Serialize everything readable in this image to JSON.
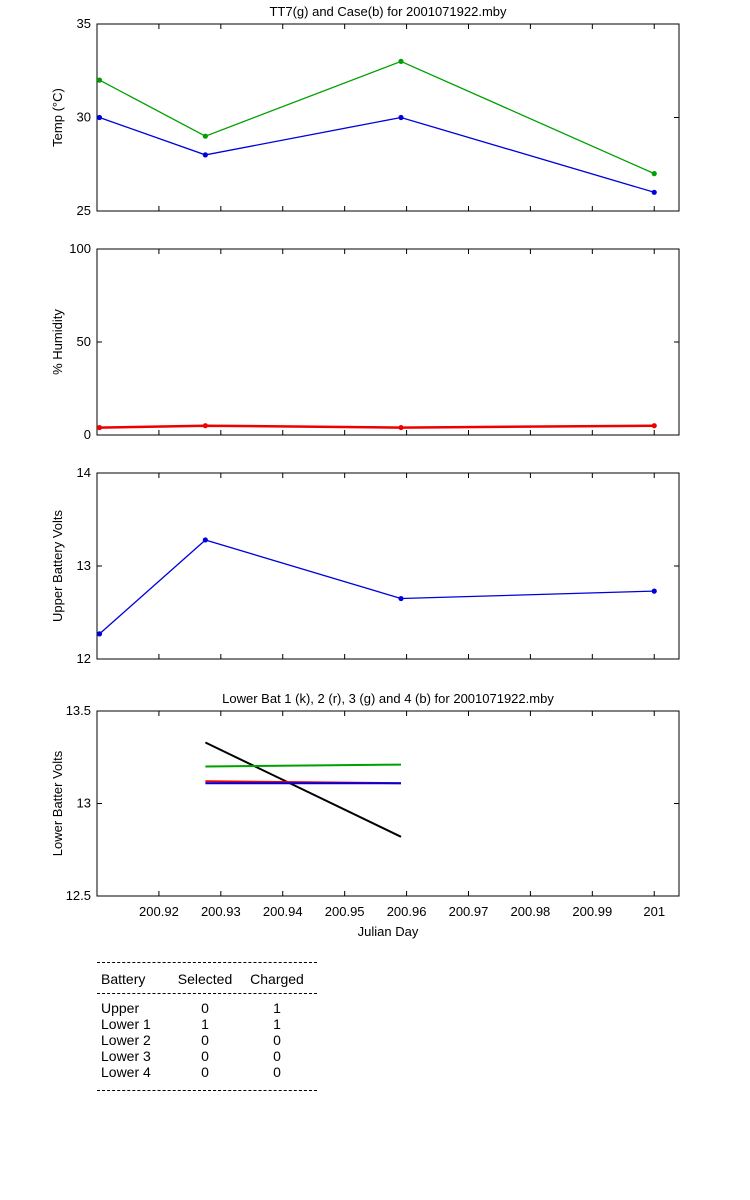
{
  "chart_data": [
    {
      "type": "line",
      "title": "TT7(g) and Case(b) for 2001071922.mby",
      "ylabel": "Temp  (°C)",
      "xlabel": "",
      "xlim": [
        200.91,
        201.004
      ],
      "ylim": [
        25,
        35
      ],
      "yticks": [
        25,
        30,
        35
      ],
      "xticks": [
        200.92,
        200.93,
        200.94,
        200.95,
        200.96,
        200.97,
        200.98,
        200.99,
        201
      ],
      "show_xtick_labels": false,
      "series": [
        {
          "color": "#00a000",
          "x": [
            200.9104,
            200.9275,
            200.9591,
            201.0
          ],
          "y": [
            32,
            29,
            33,
            27
          ]
        },
        {
          "color": "#0000dd",
          "x": [
            200.9104,
            200.9275,
            200.9591,
            201.0
          ],
          "y": [
            30,
            28,
            30,
            26
          ]
        }
      ]
    },
    {
      "type": "line",
      "title": "",
      "ylabel": "% Humidity",
      "xlabel": "",
      "xlim": [
        200.91,
        201.004
      ],
      "ylim": [
        0,
        100
      ],
      "yticks": [
        0,
        50,
        100
      ],
      "xticks": [
        200.92,
        200.93,
        200.94,
        200.95,
        200.96,
        200.97,
        200.98,
        200.99,
        201
      ],
      "show_xtick_labels": false,
      "series": [
        {
          "color": "#ee0000",
          "x": [
            200.9104,
            200.9275,
            200.9591,
            201.0
          ],
          "y": [
            4,
            5,
            4,
            5
          ]
        }
      ]
    },
    {
      "type": "line",
      "title": "",
      "ylabel": "Upper Battery Volts",
      "xlabel": "",
      "xlim": [
        200.91,
        201.004
      ],
      "ylim": [
        12,
        14
      ],
      "yticks": [
        12,
        13,
        14
      ],
      "xticks": [
        200.92,
        200.93,
        200.94,
        200.95,
        200.96,
        200.97,
        200.98,
        200.99,
        201
      ],
      "show_xtick_labels": false,
      "series": [
        {
          "color": "#0000dd",
          "x": [
            200.9104,
            200.9275,
            200.9591,
            201.0
          ],
          "y": [
            12.27,
            13.28,
            12.65,
            12.73
          ]
        }
      ]
    },
    {
      "type": "line",
      "title": "Lower Bat 1 (k), 2 (r), 3 (g) and 4 (b) for 2001071922.mby",
      "ylabel": "Lower Batter Volts",
      "xlabel": "Julian Day",
      "xlim": [
        200.91,
        201.004
      ],
      "ylim": [
        12.5,
        13.5
      ],
      "yticks": [
        12.5,
        13,
        13.5
      ],
      "xticks": [
        200.92,
        200.93,
        200.94,
        200.95,
        200.96,
        200.97,
        200.98,
        200.99,
        201
      ],
      "show_xtick_labels": true,
      "series": [
        {
          "color": "#000000",
          "x": [
            200.9275,
            200.9591
          ],
          "y": [
            13.33,
            12.82
          ]
        },
        {
          "color": "#ee0000",
          "x": [
            200.9275,
            200.9591
          ],
          "y": [
            13.12,
            13.11
          ]
        },
        {
          "color": "#00a000",
          "x": [
            200.9275,
            200.9591
          ],
          "y": [
            13.2,
            13.21
          ]
        },
        {
          "color": "#0000dd",
          "x": [
            200.9275,
            200.9591
          ],
          "y": [
            13.11,
            13.11
          ]
        }
      ]
    }
  ],
  "battery_table": {
    "headers": [
      "Battery",
      "Selected",
      "Charged"
    ],
    "rows": [
      [
        "Upper",
        "0",
        "1"
      ],
      [
        "Lower 1",
        "1",
        "1"
      ],
      [
        "Lower 2",
        "0",
        "0"
      ],
      [
        "Lower 3",
        "0",
        "0"
      ],
      [
        "Lower 4",
        "0",
        "0"
      ]
    ]
  }
}
